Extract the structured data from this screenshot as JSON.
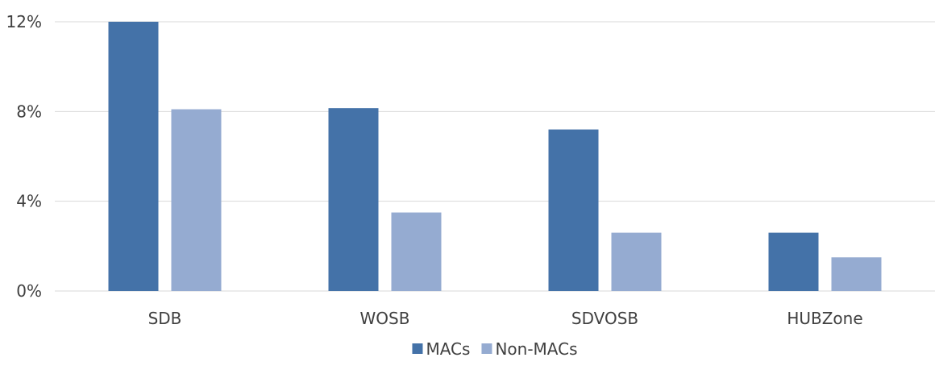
{
  "chart_data": {
    "type": "bar",
    "categories": [
      "SDB",
      "WOSB",
      "SDVOSB",
      "HUBZone"
    ],
    "series": [
      {
        "name": "MACs",
        "values": [
          12.0,
          8.15,
          7.2,
          2.6
        ],
        "color": "#4472a8"
      },
      {
        "name": "Non-MACs",
        "values": [
          8.1,
          3.5,
          2.6,
          1.5
        ],
        "color": "#95abd1"
      }
    ],
    "ylim": [
      0,
      12
    ],
    "yticks": [
      0,
      4,
      8,
      12
    ],
    "ytick_labels": [
      "0%",
      "4%",
      "8%",
      "12%"
    ],
    "grid": true,
    "legend": "bottom-center"
  }
}
